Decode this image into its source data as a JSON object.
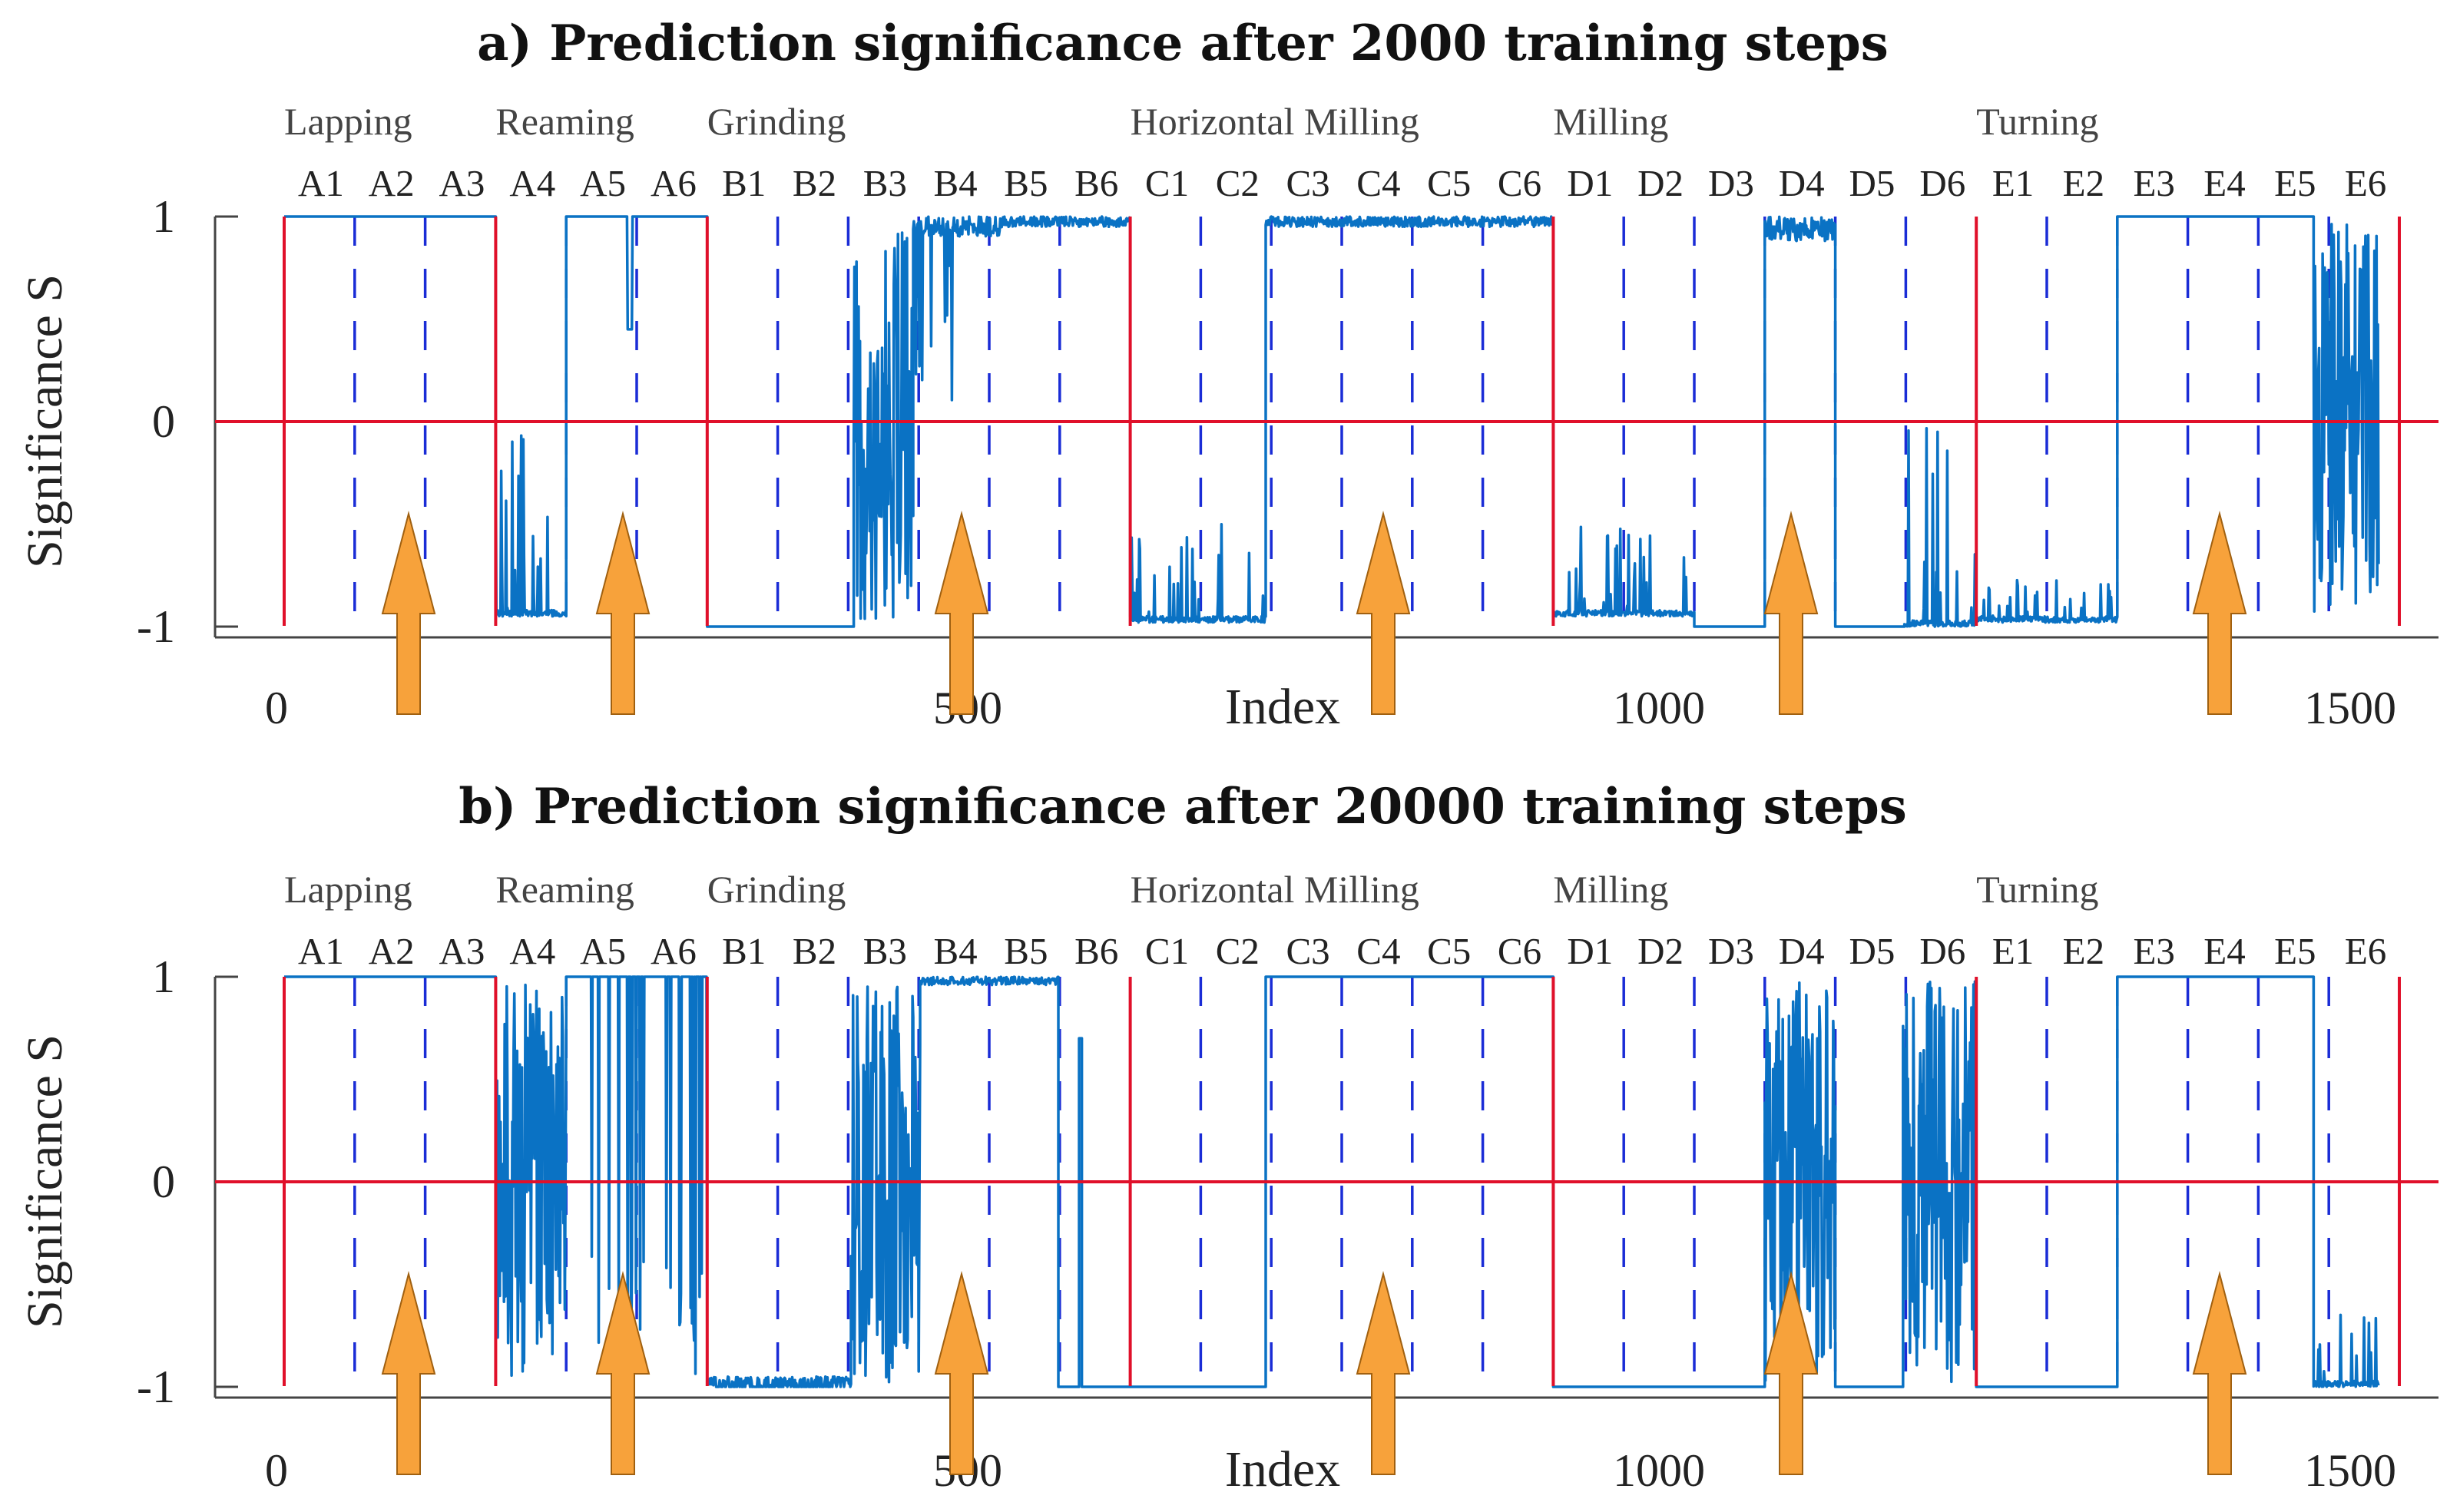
{
  "chart_data": [
    {
      "type": "line",
      "title": "a) Prediction significance after 2000 training steps",
      "xlabel": "Index",
      "ylabel": "Significance S",
      "xlim": [
        0,
        1500
      ],
      "ylim": [
        -1,
        1
      ],
      "x_ticks": [
        {
          "value": 0,
          "label": "0"
        },
        {
          "value": 500,
          "label": "500"
        },
        {
          "value": 1000,
          "label": "1000"
        },
        {
          "value": 1500,
          "label": "1500"
        }
      ],
      "y_ticks": [
        {
          "value": 1,
          "label": "1"
        },
        {
          "value": 0,
          "label": "0"
        },
        {
          "value": -1,
          "label": "-1"
        }
      ],
      "groups": [
        {
          "label": "Lapping",
          "x": 0
        },
        {
          "label": "Reaming",
          "x": 153
        },
        {
          "label": "Grinding",
          "x": 306
        },
        {
          "label": "Horizontal Milling",
          "x": 612
        },
        {
          "label": "Milling",
          "x": 918
        },
        {
          "label": "Turning",
          "x": 1224
        }
      ],
      "segments": [
        "A1",
        "A2",
        "A3",
        "A4",
        "A5",
        "A6",
        "B1",
        "B2",
        "B3",
        "B4",
        "B5",
        "B6",
        "C1",
        "C2",
        "C3",
        "C4",
        "C5",
        "C6",
        "D1",
        "D2",
        "D3",
        "D4",
        "D5",
        "D6",
        "E1",
        "E2",
        "E3",
        "E4",
        "E5",
        "E6"
      ],
      "class_boundaries": [
        0,
        153,
        306,
        612,
        918,
        1224,
        1530
      ],
      "segment_boundaries": [
        51,
        102,
        204,
        255,
        357,
        408,
        459,
        510,
        561,
        663,
        714,
        765,
        816,
        867,
        969,
        1020,
        1071,
        1122,
        1173,
        1275,
        1326,
        1377,
        1428,
        1479
      ],
      "arrows_x": [
        90,
        245,
        490,
        795,
        1090,
        1400
      ],
      "series": [
        {
          "name": "Significance S",
          "color": "#0a72c4",
          "segments": [
            {
              "x0": 0,
              "x1": 153,
              "base": 1,
              "noise": "none"
            },
            {
              "x0": 153,
              "x1": 204,
              "base": -0.95,
              "noise": "spikes",
              "amp": 0.3,
              "max": -0.05,
              "seed": 3
            },
            {
              "x0": 204,
              "x1": 306,
              "base": 1,
              "noise": "dip",
              "dip_x": 250,
              "dip_y": 0.45,
              "seed": 4
            },
            {
              "x0": 306,
              "x1": 412,
              "base": -1,
              "noise": "none"
            },
            {
              "x0": 412,
              "x1": 455,
              "base": -0.9,
              "noise": "chaos",
              "seed": 5
            },
            {
              "x0": 455,
              "x1": 520,
              "base": 1,
              "noise": "mixed",
              "seed": 6
            },
            {
              "x0": 520,
              "x1": 612,
              "base": 1,
              "noise": "small",
              "amp": 0.05,
              "seed": 7
            },
            {
              "x0": 612,
              "x1": 710,
              "base": -0.98,
              "noise": "spikes",
              "amp": 0.4,
              "max": -0.5,
              "seed": 8
            },
            {
              "x0": 710,
              "x1": 918,
              "base": 1,
              "noise": "small",
              "amp": 0.05,
              "seed": 9
            },
            {
              "x0": 918,
              "x1": 1020,
              "base": -0.95,
              "noise": "spikes",
              "amp": 0.4,
              "max": -0.5,
              "seed": 10
            },
            {
              "x0": 1020,
              "x1": 1071,
              "base": -1,
              "noise": "none"
            },
            {
              "x0": 1071,
              "x1": 1122,
              "base": 1,
              "noise": "small",
              "amp": 0.12,
              "seed": 11
            },
            {
              "x0": 1122,
              "x1": 1172,
              "base": -1,
              "noise": "none"
            },
            {
              "x0": 1172,
              "x1": 1224,
              "base": -1,
              "noise": "spikes",
              "amp": 1.0,
              "max": 0.1,
              "seed": 12
            },
            {
              "x0": 1224,
              "x1": 1326,
              "base": -0.98,
              "noise": "spikes",
              "amp": 0.2,
              "max": -0.75,
              "seed": 13
            },
            {
              "x0": 1326,
              "x1": 1468,
              "base": 1,
              "noise": "none"
            },
            {
              "x0": 1468,
              "x1": 1515,
              "base": 0,
              "noise": "chaos",
              "seed": 14
            }
          ]
        }
      ]
    },
    {
      "type": "line",
      "title": "b) Prediction significance after 20000 training steps",
      "xlabel": "Index",
      "ylabel": "Significance S",
      "xlim": [
        0,
        1500
      ],
      "ylim": [
        -1,
        1
      ],
      "x_ticks": [
        {
          "value": 0,
          "label": "0"
        },
        {
          "value": 500,
          "label": "500"
        },
        {
          "value": 1000,
          "label": "1000"
        },
        {
          "value": 1500,
          "label": "1500"
        }
      ],
      "y_ticks": [
        {
          "value": 1,
          "label": "1"
        },
        {
          "value": 0,
          "label": "0"
        },
        {
          "value": -1,
          "label": "-1"
        }
      ],
      "groups": [
        {
          "label": "Lapping",
          "x": 0
        },
        {
          "label": "Reaming",
          "x": 153
        },
        {
          "label": "Grinding",
          "x": 306
        },
        {
          "label": "Horizontal Milling",
          "x": 612
        },
        {
          "label": "Milling",
          "x": 918
        },
        {
          "label": "Turning",
          "x": 1224
        }
      ],
      "segments": [
        "A1",
        "A2",
        "A3",
        "A4",
        "A5",
        "A6",
        "B1",
        "B2",
        "B3",
        "B4",
        "B5",
        "B6",
        "C1",
        "C2",
        "C3",
        "C4",
        "C5",
        "C6",
        "D1",
        "D2",
        "D3",
        "D4",
        "D5",
        "D6",
        "E1",
        "E2",
        "E3",
        "E4",
        "E5",
        "E6"
      ],
      "class_boundaries": [
        0,
        153,
        306,
        612,
        918,
        1224,
        1530
      ],
      "segment_boundaries": [
        51,
        102,
        204,
        255,
        357,
        408,
        459,
        510,
        561,
        663,
        714,
        765,
        816,
        867,
        969,
        1020,
        1071,
        1122,
        1173,
        1275,
        1326,
        1377,
        1428,
        1479
      ],
      "arrows_x": [
        90,
        245,
        490,
        795,
        1090,
        1400
      ],
      "series": [
        {
          "name": "Significance S",
          "color": "#0a72c4",
          "segments": [
            {
              "x0": 0,
              "x1": 153,
              "base": 1,
              "noise": "none"
            },
            {
              "x0": 153,
              "x1": 204,
              "base": 0,
              "noise": "chaos",
              "seed": 21
            },
            {
              "x0": 204,
              "x1": 306,
              "base": 1,
              "noise": "drops",
              "seed": 22
            },
            {
              "x0": 306,
              "x1": 410,
              "base": -0.95,
              "noise": "small",
              "amp": 0.08,
              "seed": 23
            },
            {
              "x0": 410,
              "x1": 460,
              "base": 0,
              "noise": "chaos",
              "seed": 24
            },
            {
              "x0": 460,
              "x1": 560,
              "base": 1,
              "noise": "small",
              "amp": 0.04,
              "seed": 25
            },
            {
              "x0": 560,
              "x1": 575,
              "base": -1,
              "noise": "none"
            },
            {
              "x0": 575,
              "x1": 577,
              "base": 0.7,
              "noise": "none"
            },
            {
              "x0": 577,
              "x1": 612,
              "base": -1,
              "noise": "none"
            },
            {
              "x0": 612,
              "x1": 710,
              "base": -1,
              "noise": "none"
            },
            {
              "x0": 710,
              "x1": 918,
              "base": 1,
              "noise": "none"
            },
            {
              "x0": 918,
              "x1": 1071,
              "base": -1,
              "noise": "none"
            },
            {
              "x0": 1071,
              "x1": 1122,
              "base": 0,
              "noise": "chaos",
              "seed": 26
            },
            {
              "x0": 1122,
              "x1": 1171,
              "base": -1,
              "noise": "none"
            },
            {
              "x0": 1171,
              "x1": 1224,
              "base": 0,
              "noise": "chaos",
              "seed": 27
            },
            {
              "x0": 1224,
              "x1": 1326,
              "base": -1,
              "noise": "none"
            },
            {
              "x0": 1326,
              "x1": 1468,
              "base": 1,
              "noise": "none"
            },
            {
              "x0": 1468,
              "x1": 1515,
              "base": -1,
              "noise": "spikes",
              "amp": 0.4,
              "max": -0.6,
              "seed": 28
            }
          ]
        }
      ]
    }
  ]
}
